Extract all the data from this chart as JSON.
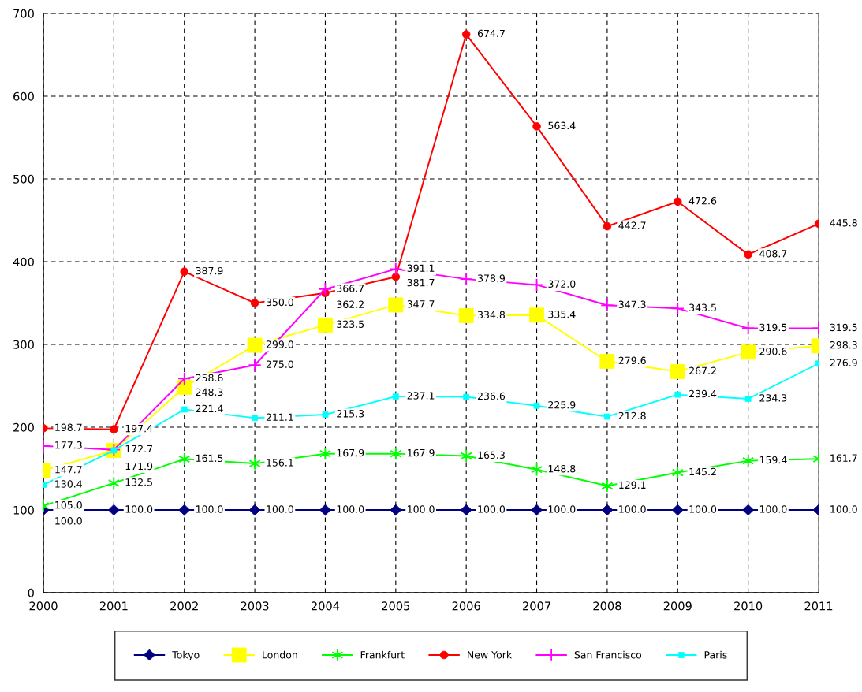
{
  "chart_data": {
    "type": "line",
    "categories": [
      "2000",
      "2001",
      "2002",
      "2003",
      "2004",
      "2005",
      "2006",
      "2007",
      "2008",
      "2009",
      "2010",
      "2011"
    ],
    "ylim": [
      0,
      700
    ],
    "yticks": [
      0,
      100,
      200,
      300,
      400,
      500,
      600,
      700
    ],
    "grid": true,
    "legend": "bottom",
    "line_style": "solid",
    "series": [
      {
        "name": "Tokyo",
        "color": "#000080",
        "marker": "diamond",
        "values": [
          100.0,
          100.0,
          100.0,
          100.0,
          100.0,
          100.0,
          100.0,
          100.0,
          100.0,
          100.0,
          100.0,
          100.0
        ],
        "value_labels": [
          "100.0",
          "100.0",
          "100.0",
          "100.0",
          "100.0",
          "100.0",
          "100.0",
          "100.0",
          "100.0",
          "100.0",
          "100.0",
          "100.0"
        ]
      },
      {
        "name": "London",
        "color": "#ffff00",
        "marker": "square",
        "values": [
          147.7,
          171.9,
          248.3,
          299.0,
          323.5,
          347.7,
          334.8,
          335.4,
          279.6,
          267.2,
          290.6,
          298.3
        ],
        "value_labels": [
          "147.7",
          "171.9",
          "248.3",
          "299.0",
          "323.5",
          "347.7",
          "334.8",
          "335.4",
          "279.6",
          "267.2",
          "290.6",
          "298.3"
        ]
      },
      {
        "name": "Frankfurt",
        "color": "#00ff00",
        "marker": "cross",
        "values": [
          105.0,
          132.5,
          161.5,
          156.1,
          167.9,
          167.9,
          165.3,
          148.8,
          129.1,
          145.2,
          159.4,
          161.7
        ],
        "value_labels": [
          "105.0",
          "132.5",
          "161.5",
          "156.1",
          "167.9",
          "167.9",
          "165.3",
          "148.8",
          "129.1",
          "145.2",
          "159.4",
          "161.7"
        ]
      },
      {
        "name": "New York",
        "color": "#ff0000",
        "marker": "circle",
        "values": [
          198.7,
          197.4,
          387.9,
          350.0,
          362.2,
          381.7,
          674.7,
          563.4,
          442.7,
          472.6,
          408.7,
          445.8
        ],
        "value_labels": [
          "198.7",
          "197.4",
          "387.9",
          "350.0",
          "362.2",
          "381.7",
          "674.7",
          "563.4",
          "442.7",
          "472.6",
          "408.7",
          "445.8"
        ]
      },
      {
        "name": "San Francisco",
        "color": "#ff00ff",
        "marker": "cross",
        "values": [
          177.3,
          172.7,
          258.6,
          275.0,
          366.7,
          391.1,
          378.9,
          372.0,
          347.3,
          343.5,
          319.5,
          319.5
        ],
        "value_labels": [
          "177.3",
          "172.7",
          "258.6",
          "275.0",
          "366.7",
          "391.1",
          "378.9",
          "372.0",
          "347.3",
          "343.5",
          "319.5",
          "319.5"
        ]
      },
      {
        "name": "Paris",
        "color": "#00ffff",
        "marker": "square",
        "values": [
          130.4,
          172,
          221.4,
          211.1,
          215.3,
          237.1,
          236.6,
          225.9,
          212.8,
          239.4,
          234.3,
          276.9
        ],
        "value_labels": [
          "130.4",
          null,
          "221.4",
          "211.1",
          "215.3",
          "237.1",
          "236.6",
          "225.9",
          "212.8",
          "239.4",
          "234.3",
          "276.9"
        ]
      }
    ]
  }
}
